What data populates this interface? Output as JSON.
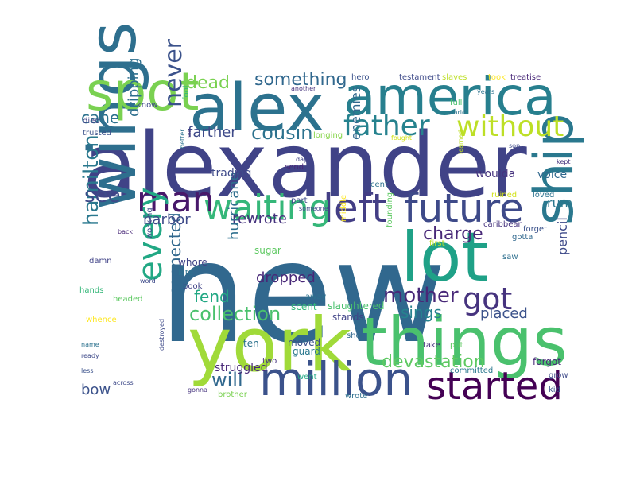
{
  "words": [
    {
      "text": "new",
      "color": "#31688e"
    },
    {
      "text": "alexander",
      "color": "#404387"
    },
    {
      "text": "york",
      "color": "#a0da39"
    },
    {
      "text": "things",
      "color": "#4ac16d"
    },
    {
      "text": "alex",
      "color": "#2c728e"
    },
    {
      "text": "america",
      "color": "#277f8e"
    },
    {
      "text": "wings",
      "color": "#2e6f8e"
    },
    {
      "text": "lot",
      "color": "#1fa187"
    },
    {
      "text": "spot",
      "color": "#7ad151"
    },
    {
      "text": "left",
      "color": "#433e85"
    },
    {
      "text": "future",
      "color": "#3e4a89"
    },
    {
      "text": "million",
      "color": "#3b528b"
    },
    {
      "text": "started",
      "color": "#440154"
    },
    {
      "text": "ship",
      "color": "#2a788e"
    },
    {
      "text": "waiting",
      "color": "#35b779"
    },
    {
      "text": "man",
      "color": "#48186a"
    },
    {
      "text": "father",
      "color": "#26828e"
    },
    {
      "text": "without",
      "color": "#bddf26"
    },
    {
      "text": "every",
      "color": "#22a884"
    },
    {
      "text": "got",
      "color": "#46337e"
    },
    {
      "text": "mother",
      "color": "#482878"
    },
    {
      "text": "never",
      "color": "#3b528b"
    },
    {
      "text": "collection",
      "color": "#4ac16d"
    },
    {
      "text": "will",
      "color": "#31688e"
    },
    {
      "text": "hamilton",
      "color": "#2a788e"
    },
    {
      "text": "cousin",
      "color": "#2c728e"
    },
    {
      "text": "something",
      "color": "#31688e"
    },
    {
      "text": "see",
      "color": "#3e4a89"
    },
    {
      "text": "devastation",
      "color": "#5ec962"
    },
    {
      "text": "charge",
      "color": "#482878"
    },
    {
      "text": "dead",
      "color": "#7ad151"
    },
    {
      "text": "sings",
      "color": "#26828e"
    },
    {
      "text": "placed",
      "color": "#3b528b"
    },
    {
      "text": "dropped",
      "color": "#482878"
    },
    {
      "text": "cane",
      "color": "#2c728e"
    },
    {
      "text": "farther",
      "color": "#3e4a89"
    },
    {
      "text": "connected",
      "color": "#31688e"
    },
    {
      "text": "fend",
      "color": "#22a884"
    },
    {
      "text": "dripping",
      "color": "#2e6f8e"
    },
    {
      "text": "harbor",
      "color": "#3e4a89"
    },
    {
      "text": "rewrote",
      "color": "#46337e"
    },
    {
      "text": "hurricane",
      "color": "#2e6f8e"
    },
    {
      "text": "enemies",
      "color": "#31688e"
    },
    {
      "text": "bow",
      "color": "#3b528b"
    },
    {
      "text": "pencil",
      "color": "#3e4a89"
    },
    {
      "text": "rum",
      "color": "#2a788e"
    },
    {
      "text": "struggled",
      "color": "#482878"
    },
    {
      "text": "trading",
      "color": "#3e4a89"
    },
    {
      "text": "woulda",
      "color": "#46337e"
    },
    {
      "text": "voice",
      "color": "#31688e"
    },
    {
      "text": "sugar",
      "color": "#5ec962"
    },
    {
      "text": "scent",
      "color": "#35b779"
    },
    {
      "text": "slaughtered",
      "color": "#4ac16d"
    },
    {
      "text": "stands",
      "color": "#404387"
    },
    {
      "text": "moved",
      "color": "#3b528b"
    },
    {
      "text": "guard",
      "color": "#2a788e"
    },
    {
      "text": "ten",
      "color": "#2c728e"
    },
    {
      "text": "two",
      "color": "#46337e"
    },
    {
      "text": "went",
      "color": "#22a884"
    },
    {
      "text": "brother",
      "color": "#7ad151"
    },
    {
      "text": "wrote",
      "color": "#2e6f8e"
    },
    {
      "text": "committed",
      "color": "#2a788e"
    },
    {
      "text": "forgot",
      "color": "#482878"
    },
    {
      "text": "grow",
      "color": "#3e4a89"
    },
    {
      "text": "kid",
      "color": "#3b528b"
    },
    {
      "text": "take",
      "color": "#46337e"
    },
    {
      "text": "put",
      "color": "#5ec962"
    },
    {
      "text": "shot",
      "color": "#31688e"
    },
    {
      "text": "hero",
      "color": "#3b528b"
    },
    {
      "text": "testament",
      "color": "#3e4a89"
    },
    {
      "text": "slaves",
      "color": "#bddf26"
    },
    {
      "text": "took",
      "color": "#fde725"
    },
    {
      "text": "treatise",
      "color": "#482878"
    },
    {
      "text": "another",
      "color": "#46337e"
    },
    {
      "text": "fool",
      "color": "#35b779"
    },
    {
      "text": "years",
      "color": "#2c728e"
    },
    {
      "text": "world",
      "color": "#2c728e"
    },
    {
      "text": "full",
      "color": "#4ac16d"
    },
    {
      "text": "fought",
      "color": "#d2e21b"
    },
    {
      "text": "son",
      "color": "#3e4a89"
    },
    {
      "text": "learned",
      "color": "#bddf26"
    },
    {
      "text": "kept",
      "color": "#46337e"
    },
    {
      "text": "ruined",
      "color": "#d2e21b"
    },
    {
      "text": "loved",
      "color": "#2c728e"
    },
    {
      "text": "caribbean",
      "color": "#46337e"
    },
    {
      "text": "gotta",
      "color": "#31688e"
    },
    {
      "text": "forget",
      "color": "#3b528b"
    },
    {
      "text": "saw",
      "color": "#2e6f8e"
    },
    {
      "text": "founding",
      "color": "#5ec962"
    },
    {
      "text": "first",
      "color": "#bddf26"
    },
    {
      "text": "cent",
      "color": "#2c728e"
    },
    {
      "text": "longing",
      "color": "#86d549"
    },
    {
      "text": "day",
      "color": "#404387"
    },
    {
      "text": "send",
      "color": "#482878"
    },
    {
      "text": "part",
      "color": "#3e4a89"
    },
    {
      "text": "someone",
      "color": "#3e4a89"
    },
    {
      "text": "middle",
      "color": "#fde725"
    },
    {
      "text": "away",
      "color": "#2c728e"
    },
    {
      "text": "book",
      "color": "#404387"
    },
    {
      "text": "whore",
      "color": "#404387"
    },
    {
      "text": "late",
      "color": "#2c728e"
    },
    {
      "text": "headed",
      "color": "#5ec962"
    },
    {
      "text": "working",
      "color": "#3e4a89"
    },
    {
      "text": "whence",
      "color": "#fde725"
    },
    {
      "text": "damn",
      "color": "#404387"
    },
    {
      "text": "back",
      "color": "#482878"
    },
    {
      "text": "hands",
      "color": "#35b779"
    },
    {
      "text": "word",
      "color": "#3e4a89"
    },
    {
      "text": "better",
      "color": "#2c728e"
    },
    {
      "text": "now",
      "color": "#46337e"
    },
    {
      "text": "died",
      "color": "#404387"
    },
    {
      "text": "trusted",
      "color": "#3b528b"
    },
    {
      "text": "know",
      "color": "#3e4a89"
    },
    {
      "text": "name",
      "color": "#2c728e"
    },
    {
      "text": "ready",
      "color": "#3e4a89"
    },
    {
      "text": "less",
      "color": "#3b528b"
    },
    {
      "text": "across",
      "color": "#3e4a89"
    },
    {
      "text": "destroyed",
      "color": "#3e4a89"
    },
    {
      "text": "gonna",
      "color": "#46337e"
    }
  ]
}
